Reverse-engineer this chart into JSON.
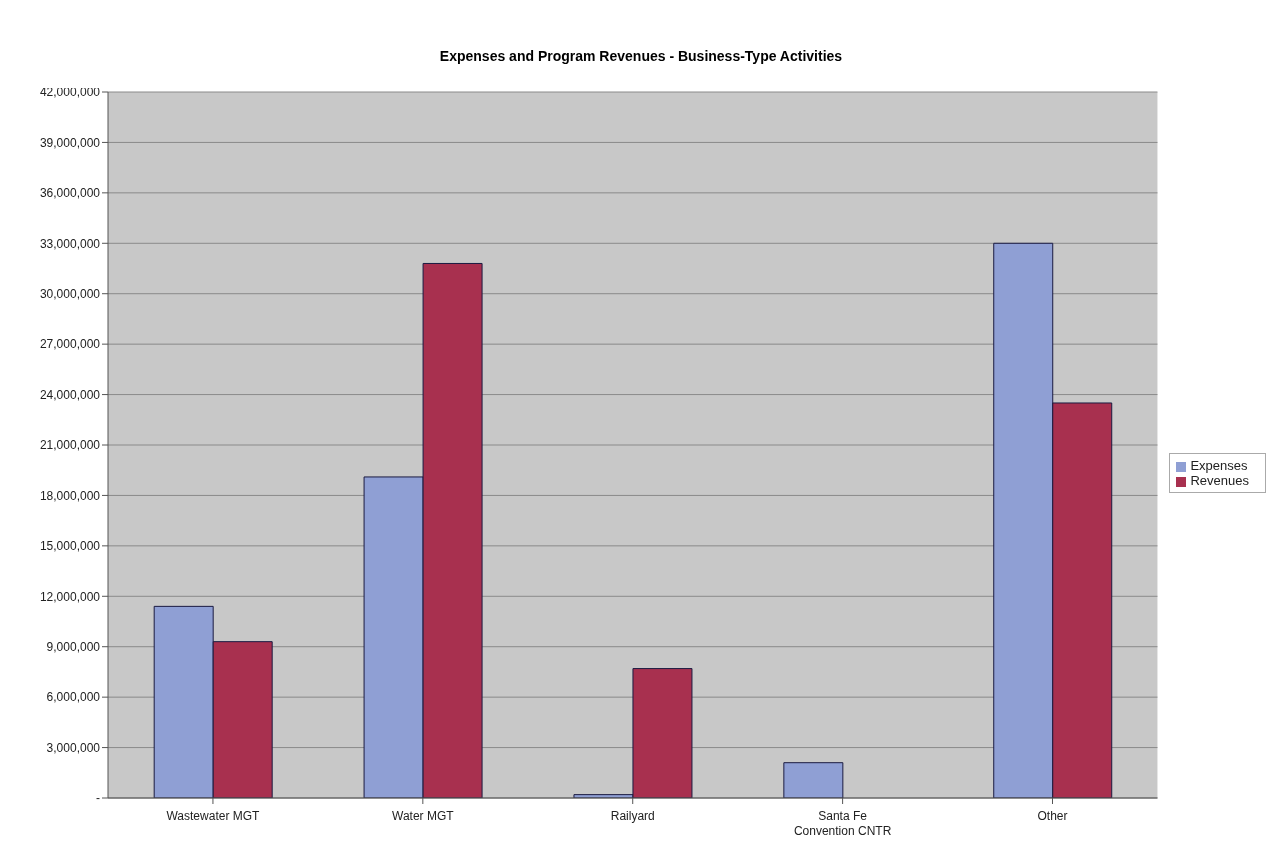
{
  "chart_data": {
    "type": "bar",
    "title": "Expenses and Program Revenues - Business-Type Activities",
    "categories": [
      "Wastewater MGT",
      "Water MGT",
      "Railyard",
      "Santa Fe Convention CNTR",
      "Other"
    ],
    "series": [
      {
        "name": "Expenses",
        "color": "#8f9fd4",
        "values": [
          11400000,
          19100000,
          200000,
          2100000,
          33000000
        ]
      },
      {
        "name": "Revenues",
        "color": "#a8304f",
        "values": [
          9300000,
          31800000,
          7700000,
          0,
          23500000
        ]
      }
    ],
    "ylim": [
      0,
      42000000
    ],
    "yticks": [
      {
        "value": 0,
        "label": "-"
      },
      {
        "value": 3000000,
        "label": "3,000,000"
      },
      {
        "value": 6000000,
        "label": "6,000,000"
      },
      {
        "value": 9000000,
        "label": "9,000,000"
      },
      {
        "value": 12000000,
        "label": "12,000,000"
      },
      {
        "value": 15000000,
        "label": "15,000,000"
      },
      {
        "value": 18000000,
        "label": "18,000,000"
      },
      {
        "value": 21000000,
        "label": "21,000,000"
      },
      {
        "value": 24000000,
        "label": "24,000,000"
      },
      {
        "value": 27000000,
        "label": "27,000,000"
      },
      {
        "value": 30000000,
        "label": "30,000,000"
      },
      {
        "value": 33000000,
        "label": "33,000,000"
      },
      {
        "value": 36000000,
        "label": "36,000,000"
      },
      {
        "value": 39000000,
        "label": "39,000,000"
      },
      {
        "value": 42000000,
        "label": "42,000,000"
      }
    ],
    "grid": "y",
    "legend": "right"
  }
}
